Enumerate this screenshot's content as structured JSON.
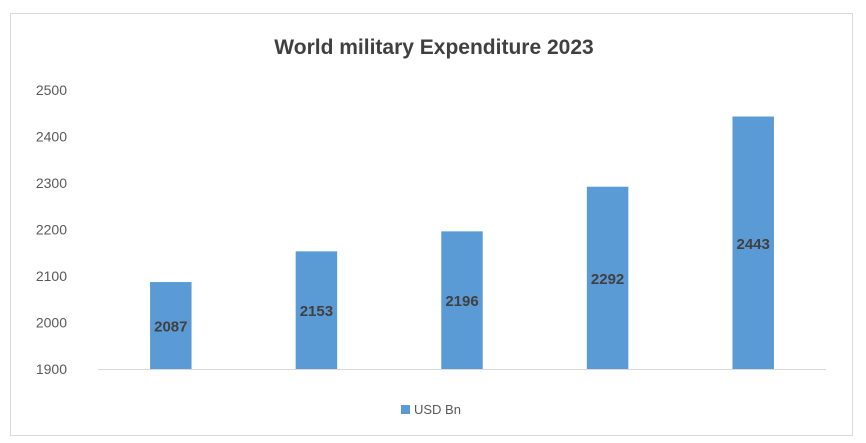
{
  "chart_data": {
    "type": "bar",
    "title": "World military Expenditure 2023",
    "xlabel": "",
    "ylabel": "",
    "categories": [
      "",
      "",
      "",
      "",
      ""
    ],
    "series": [
      {
        "name": "USD Bn",
        "values": [
          2087,
          2153,
          2196,
          2292,
          2443
        ],
        "color": "#5b9bd5"
      }
    ],
    "ylim": [
      1900,
      2500
    ],
    "yticks": [
      1900,
      2000,
      2100,
      2200,
      2300,
      2400,
      2500
    ],
    "grid": false,
    "legend": "bottom",
    "data_labels": true
  },
  "colors": {
    "bar": "#5b9bd5",
    "title": "#404040",
    "tick": "#595959",
    "axis": "#d9d9d9"
  }
}
